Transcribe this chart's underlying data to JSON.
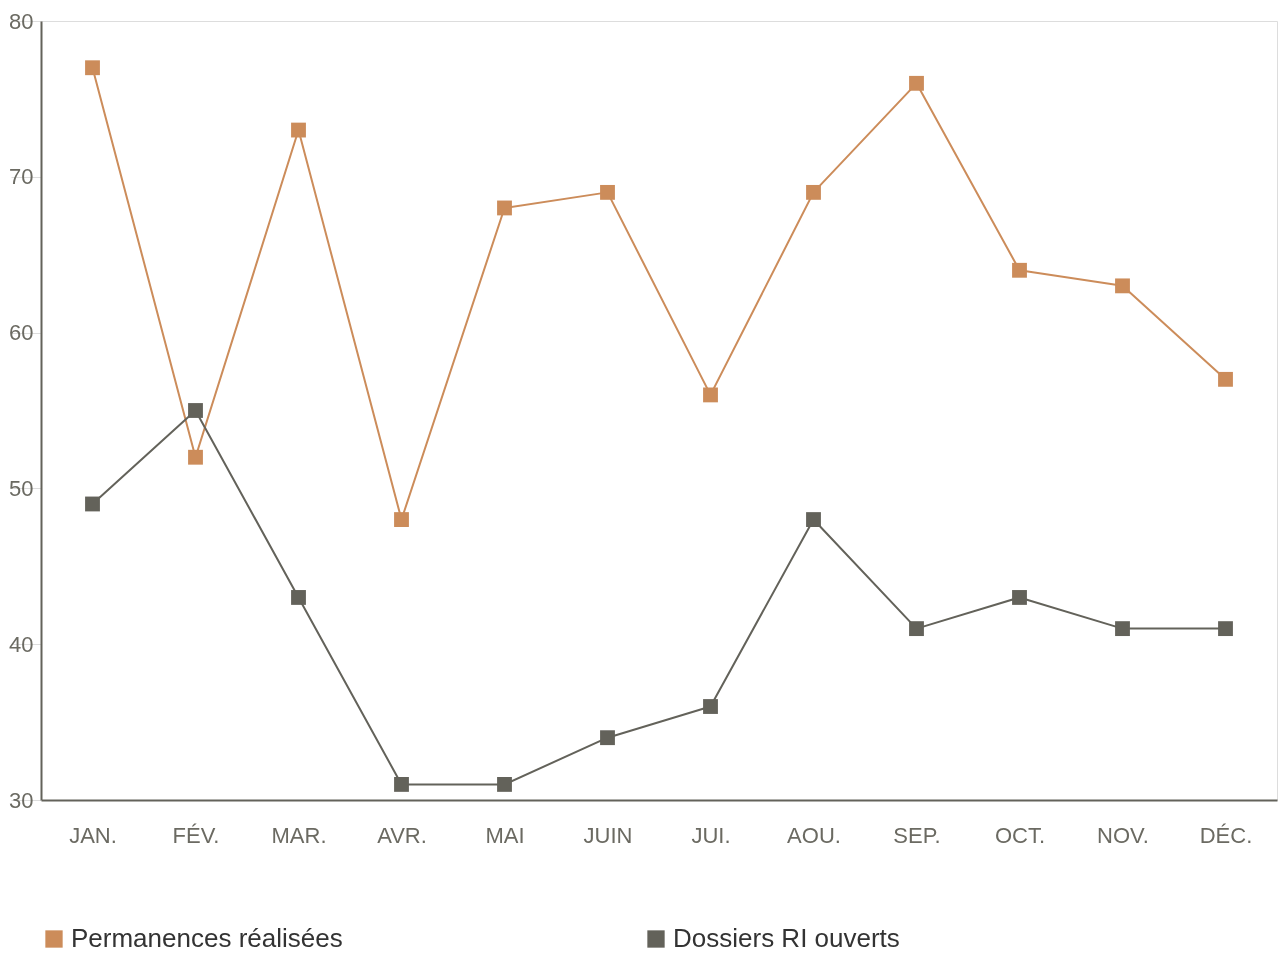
{
  "chart_data": {
    "type": "line",
    "categories": [
      "JAN.",
      "FÉV.",
      "MAR.",
      "AVR.",
      "MAI",
      "JUIN",
      "JUI.",
      "AOU.",
      "SEP.",
      "OCT.",
      "NOV.",
      "DÉC."
    ],
    "series": [
      {
        "name": "Permanences réalisées",
        "color": "#cc8c5a",
        "values": [
          77,
          52,
          73,
          48,
          68,
          69,
          56,
          69,
          76,
          64,
          63,
          57
        ]
      },
      {
        "name": "Dossiers RI ouverts",
        "color": "#63625a",
        "values": [
          49,
          55,
          43,
          31,
          31,
          34,
          36,
          48,
          41,
          43,
          41,
          41
        ]
      }
    ],
    "ylim": [
      30,
      80
    ],
    "yticks": [
      30,
      40,
      50,
      60,
      70,
      80
    ],
    "grid": false,
    "legend": "bottom",
    "marker": "square",
    "line_style": "solid"
  }
}
